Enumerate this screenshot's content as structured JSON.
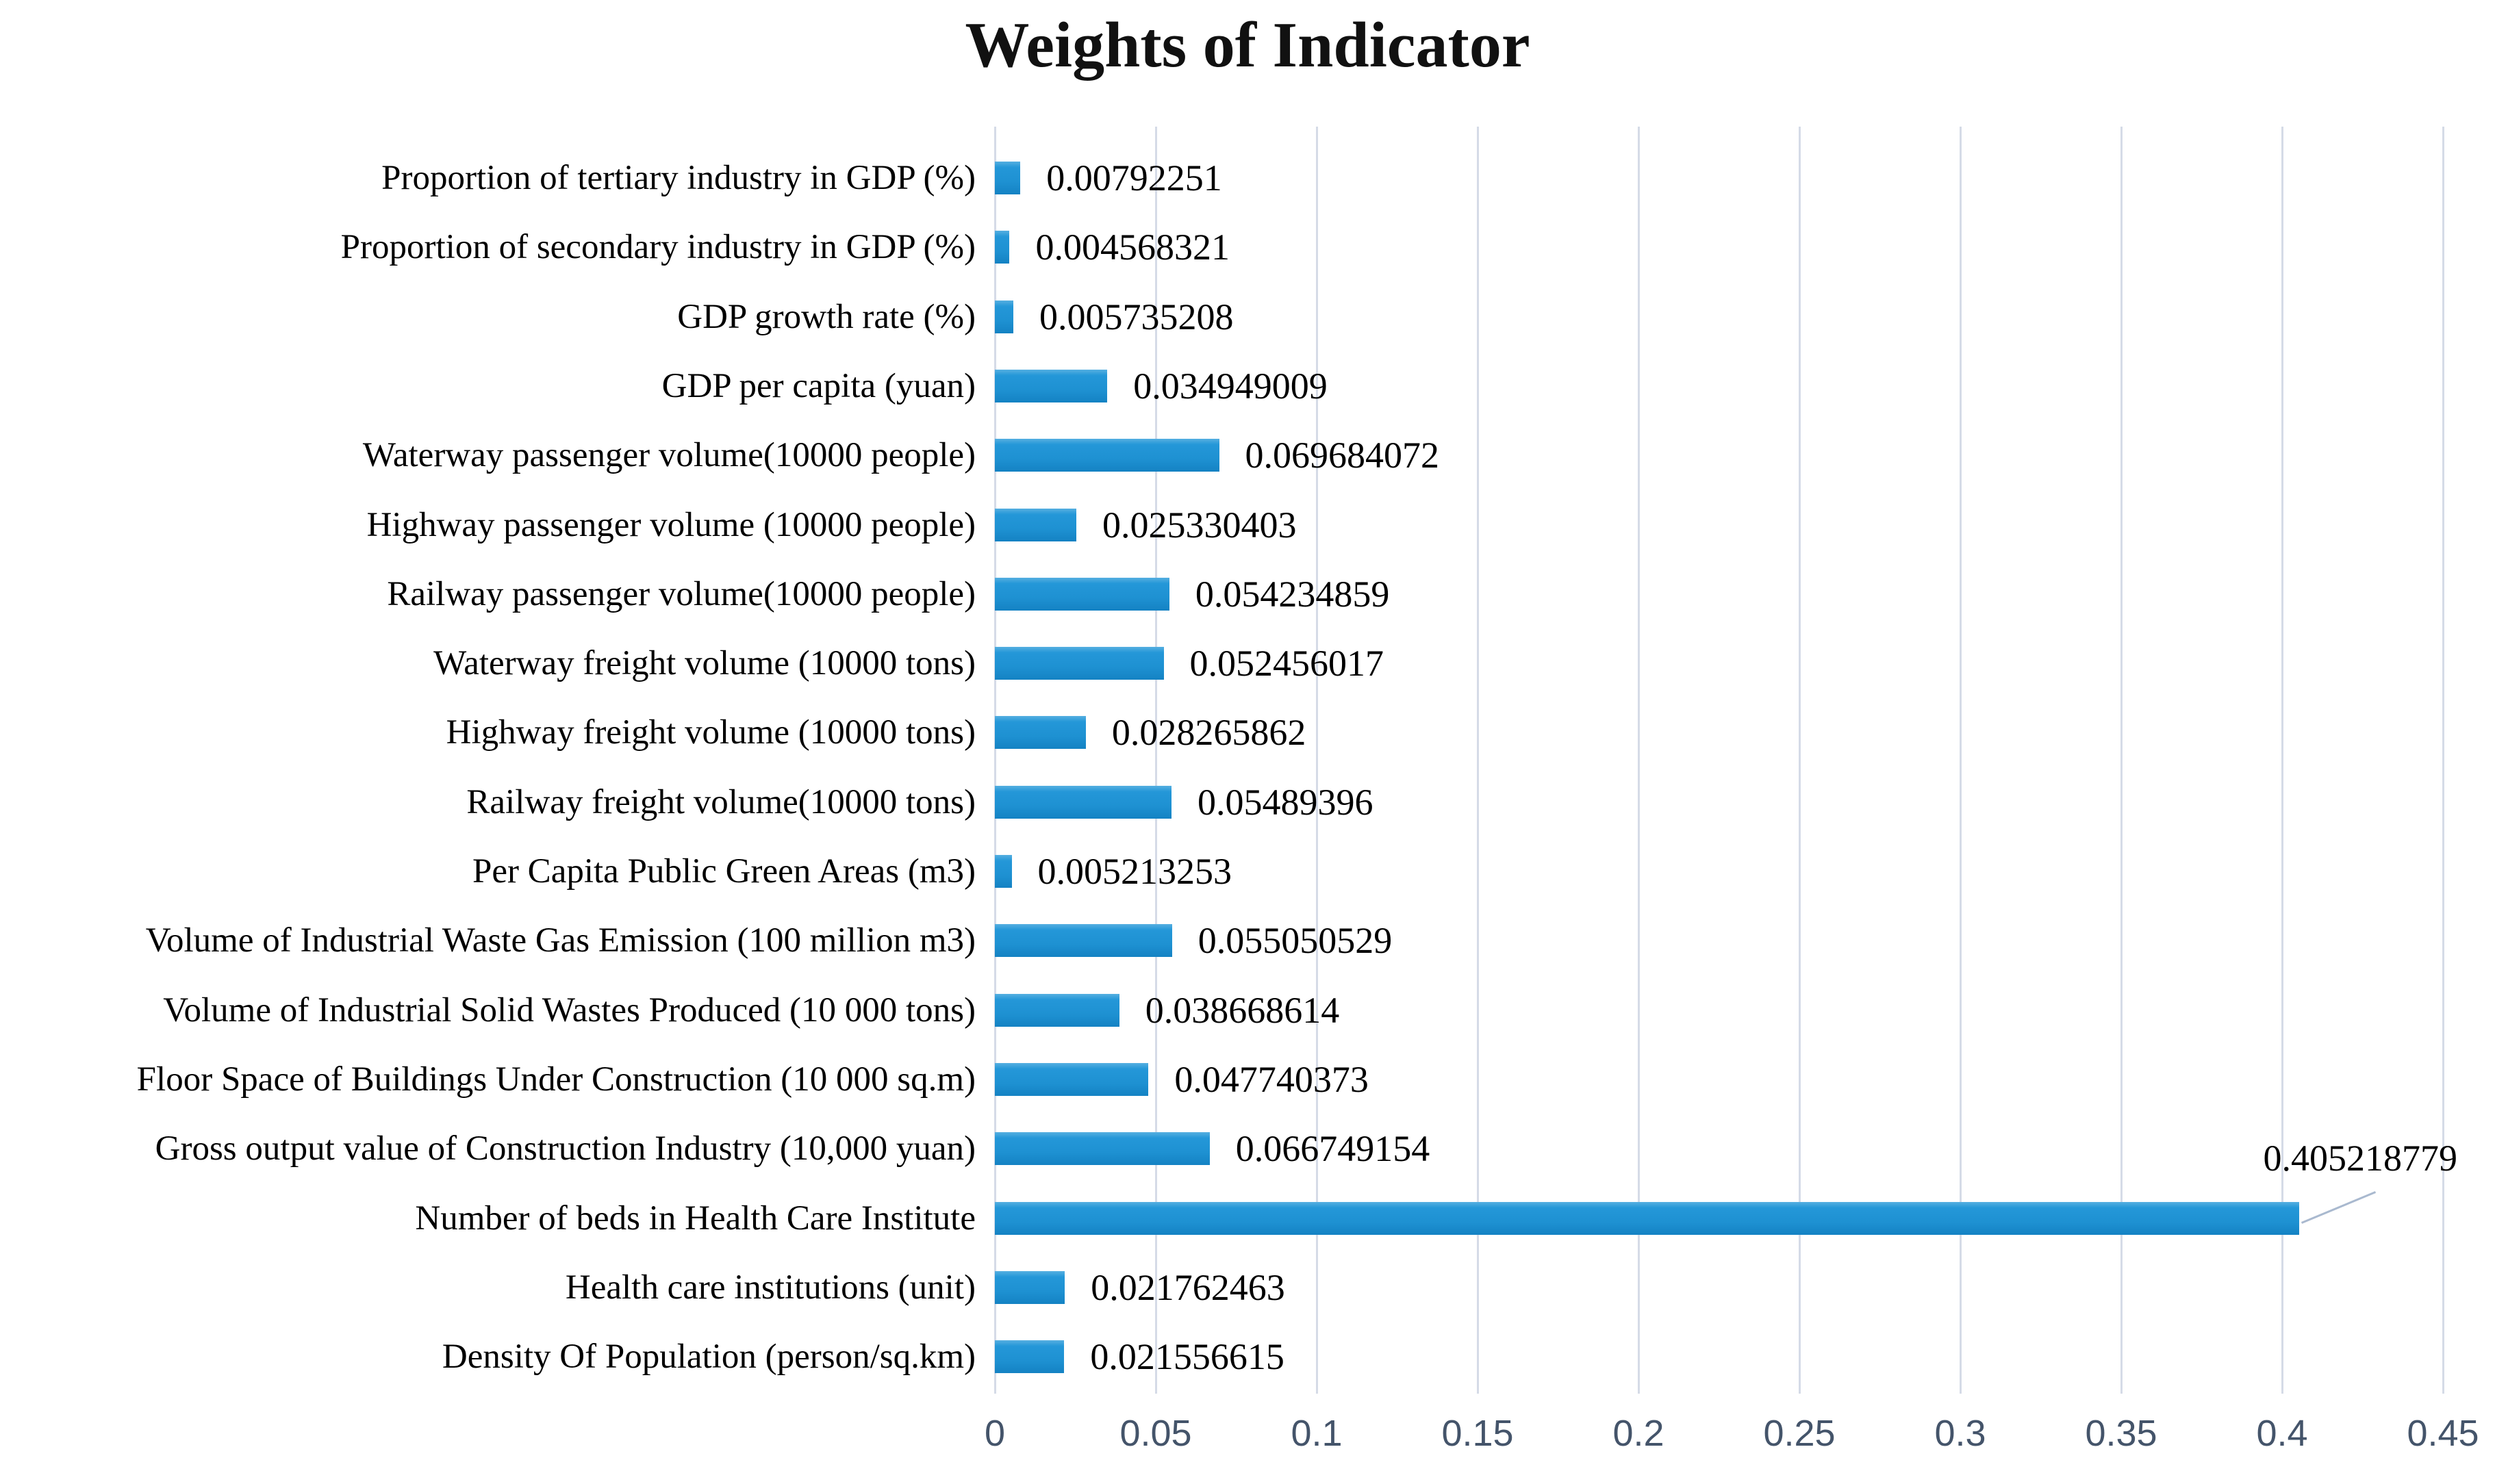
{
  "title": "Weights of Indicator",
  "chart_data": {
    "type": "bar",
    "orientation": "horizontal",
    "title": "Weights of Indicator",
    "legend": "none",
    "grid": "vertical",
    "xlim": [
      0,
      0.45
    ],
    "x_tick_labels": [
      "0",
      "0.05",
      "0.1",
      "0.15",
      "0.2",
      "0.25",
      "0.3",
      "0.35",
      "0.4",
      "0.45"
    ],
    "x_tick_values": [
      0,
      0.05,
      0.1,
      0.15,
      0.2,
      0.25,
      0.3,
      0.35,
      0.4,
      0.45
    ],
    "categories": [
      "Proportion of tertiary industry in GDP (%)",
      "Proportion of secondary industry in GDP (%)",
      "GDP growth rate (%)",
      "GDP per capita (yuan)",
      "Waterway passenger volume(10000 people)",
      "Highway passenger volume (10000 people)",
      "Railway passenger volume(10000 people)",
      "Waterway freight volume (10000 tons)",
      "Highway freight volume (10000 tons)",
      "Railway freight volume(10000 tons)",
      "Per Capita Public Green Areas (m3)",
      "Volume of Industrial Waste Gas Emission (100 million m3)",
      "Volume of Industrial Solid Wastes Produced (10 000 tons)",
      "Floor Space of Buildings Under Construction (10 000 sq.m)",
      "Gross output value of Construction Industry (10,000 yuan)",
      "Number of beds in Health Care Institute",
      "Health care institutions (unit)",
      "Density Of Population (person/sq.km)"
    ],
    "values": [
      0.00792251,
      0.004568321,
      0.005735208,
      0.034949009,
      0.069684072,
      0.025330403,
      0.054234859,
      0.052456017,
      0.028265862,
      0.05489396,
      0.005213253,
      0.055050529,
      0.038668614,
      0.047740373,
      0.066749154,
      0.405218779,
      0.021762463,
      0.021556615
    ],
    "value_labels": [
      "0.00792251",
      "0.004568321",
      "0.005735208",
      "0.034949009",
      "0.069684072",
      "0.025330403",
      "0.054234859",
      "0.052456017",
      "0.028265862",
      "0.05489396",
      "0.005213253",
      "0.055050529",
      "0.038668614",
      "0.047740373",
      "0.066749154",
      "0.405218779",
      "0.021762463",
      "0.021556615"
    ],
    "callout": {
      "category_index": 15,
      "label": "0.405218779",
      "note": "value label drawn above bar end with leader line"
    },
    "colors": {
      "bar": "#1E91D2",
      "bar_top": "#56AFE1",
      "bar_bottom": "#1482C3",
      "gridline": "#D5DBE7",
      "tick_label": "#44546A",
      "text": "#000000",
      "leader_line": "#A9B9CF",
      "background": "#FFFFFF"
    }
  }
}
